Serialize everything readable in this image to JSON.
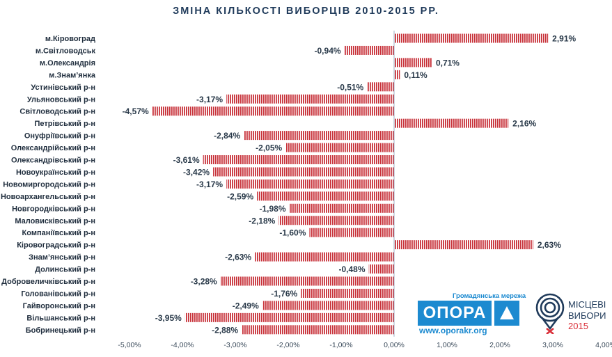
{
  "chart_data": {
    "type": "bar",
    "orientation": "horizontal",
    "title": "ЗМІНА КІЛЬКОСТІ ВИБОРЦІВ 2010-2015 РР.",
    "categories": [
      "м.Кіровоград",
      "м.Світловодськ",
      "м.Олександрія",
      "м.Знам’янка",
      "Устинівський р-н",
      "Ульяновський р-н",
      "Світловодський р-н",
      "Петрівський р-н",
      "Онуфріївський р-н",
      "Олександрійський р-н",
      "Олександрівський р-н",
      "Новоукраїнський р-н",
      "Новомиргородський р-н",
      "Новоархангельський р-н",
      "Новгородківський р-н",
      "Маловисківський р-н",
      "Компаніївський р-н",
      "Кіровоградський р-н",
      "Знам’янський р-н",
      "Долинський р-н",
      "Добровеличківський р-н",
      "Голованівський р-н",
      "Гайворонський р-н",
      "Вільшанський р-н",
      "Бобринецький р-н"
    ],
    "values": [
      2.91,
      -0.94,
      0.71,
      0.11,
      -0.51,
      -3.17,
      -4.57,
      2.16,
      -2.84,
      -2.05,
      -3.61,
      -3.42,
      -3.17,
      -2.59,
      -1.98,
      -2.18,
      -1.6,
      2.63,
      -2.63,
      -0.48,
      -3.28,
      -1.76,
      -2.49,
      -3.95,
      -2.88
    ],
    "value_labels": [
      "2,91%",
      "-0,94%",
      "0,71%",
      "0,11%",
      "-0,51%",
      "-3,17%",
      "-4,57%",
      "2,16%",
      "-2,84%",
      "-2,05%",
      "-3,61%",
      "-3,42%",
      "-3,17%",
      "-2,59%",
      "-1,98%",
      "-2,18%",
      "-1,60%",
      "2,63%",
      "-2,63%",
      "-0,48%",
      "-3,28%",
      "-1,76%",
      "-2,49%",
      "-3,95%",
      "-2,88%"
    ],
    "xlim": [
      -5,
      4
    ],
    "x_ticks": [
      -5,
      -4,
      -3,
      -2,
      -1,
      0,
      1,
      2,
      3,
      4
    ],
    "x_tick_labels": [
      "-5,00%",
      "-4,00%",
      "-3,00%",
      "-2,00%",
      "-1,00%",
      "0,00%",
      "1,00%",
      "2,00%",
      "3,00%",
      "4,00%"
    ],
    "grid": false,
    "legend": "none",
    "bar_color": "#c8323a",
    "bar_pattern": "vertical-stripes"
  },
  "logos": {
    "opora": {
      "network_text": "Громадянська мережа",
      "name": "ОПОРА",
      "url": "www.oporakr.org",
      "color": "#1c8ad0"
    },
    "elections": {
      "line1": "МІСЦЕВІ",
      "line2": "ВИБОРИ",
      "year": "2015",
      "color": "#1f3a5a",
      "accent": "#d92e38"
    }
  }
}
